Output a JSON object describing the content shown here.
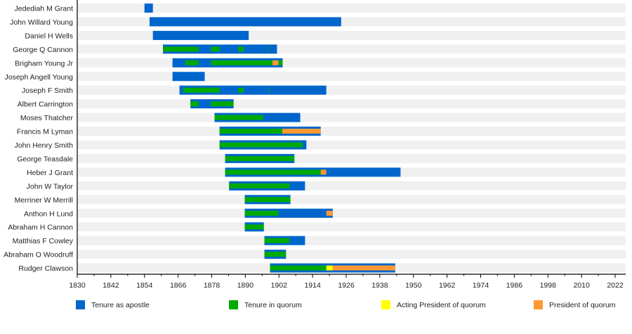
{
  "chart_data": {
    "type": "timeline",
    "title": "",
    "xlabel": "",
    "ylabel": "",
    "xlim": [
      1830,
      2022
    ],
    "x_ticks": [
      1830,
      1842,
      1854,
      1866,
      1878,
      1890,
      1902,
      1914,
      1926,
      1938,
      1950,
      1962,
      1974,
      1986,
      1998,
      2010,
      2022
    ],
    "grid": false,
    "legend_position": "bottom",
    "colors": {
      "apostle": "#0066cc",
      "quorum": "#00aa00",
      "acting_president": "#ffff00",
      "president": "#ff9933",
      "row_band": "#f0f0f0"
    },
    "legend": [
      {
        "key": "apostle",
        "label": "Tenure as apostle"
      },
      {
        "key": "quorum",
        "label": "Tenure in quorum"
      },
      {
        "key": "acting_president",
        "label": "Acting President of quorum"
      },
      {
        "key": "president",
        "label": "President of quorum"
      }
    ],
    "rows": [
      {
        "name": "Jedediah M Grant",
        "apostle": [
          1854,
          1857
        ],
        "quorum": [],
        "acting_president": [],
        "president": []
      },
      {
        "name": "John Willard Young",
        "apostle": [
          1855.8,
          1924.2
        ],
        "quorum": [],
        "acting_president": [],
        "president": []
      },
      {
        "name": "Daniel H Wells",
        "apostle": [
          1857,
          1891.2
        ],
        "quorum": [],
        "acting_president": [],
        "president": []
      },
      {
        "name": "George Q Cannon",
        "apostle": [
          1860.6,
          1901.3
        ],
        "quorum": [
          [
            1860.6,
            1873.3
          ],
          [
            1877.7,
            1880.8
          ],
          [
            1887.4,
            1889.4
          ],
          [
            1898.3,
            1898.5
          ]
        ],
        "acting_president": [],
        "president": []
      },
      {
        "name": "Brigham Young Jr",
        "apostle": [
          1864,
          1903.3
        ],
        "quorum": [
          [
            1868.6,
            1873.3
          ],
          [
            1877.7,
            1899.7
          ],
          [
            1901.8,
            1903.3
          ]
        ],
        "acting_president": [],
        "president": [
          [
            1899.7,
            1901.8
          ]
        ]
      },
      {
        "name": "Joseph Angell Young",
        "apostle": [
          1864,
          1875.5
        ],
        "quorum": [],
        "acting_president": [],
        "president": []
      },
      {
        "name": "Joseph F Smith",
        "apostle": [
          1866.5,
          1918.9
        ],
        "quorum": [
          [
            1867.8,
            1880.8
          ],
          [
            1887.4,
            1889.4
          ],
          [
            1898.3,
            1898.5
          ]
        ],
        "acting_president": [],
        "president": []
      },
      {
        "name": "Albert Carrington",
        "apostle": [
          1870.4,
          1885.8
        ],
        "quorum": [
          [
            1870.4,
            1873.3
          ],
          [
            1877.7,
            1885.8
          ]
        ],
        "acting_president": [],
        "president": []
      },
      {
        "name": "Moses Thatcher",
        "apostle": [
          1879,
          1909.6
        ],
        "quorum": [
          [
            1879,
            1896.3
          ]
        ],
        "acting_president": [],
        "president": []
      },
      {
        "name": "Francis M Lyman",
        "apostle": [
          1880.8,
          1916.9
        ],
        "quorum": [
          [
            1880.8,
            1903.2
          ]
        ],
        "acting_president": [],
        "president": [
          [
            1903.2,
            1916.9
          ]
        ]
      },
      {
        "name": "John Henry Smith",
        "apostle": [
          1880.8,
          1911.8
        ],
        "quorum": [
          [
            1880.8,
            1910.4
          ]
        ],
        "acting_president": [],
        "president": []
      },
      {
        "name": "George Teasdale",
        "apostle": [
          1882.8,
          1907.5
        ],
        "quorum": [
          [
            1882.8,
            1907.5
          ]
        ],
        "acting_president": [],
        "president": []
      },
      {
        "name": "Heber J Grant",
        "apostle": [
          1882.8,
          1945.4
        ],
        "quorum": [
          [
            1882.8,
            1916.9
          ]
        ],
        "acting_president": [],
        "president": [
          [
            1916.9,
            1918.9
          ]
        ]
      },
      {
        "name": "John W Taylor",
        "apostle": [
          1884.2,
          1911.3
        ],
        "quorum": [
          [
            1884.2,
            1905.8
          ]
        ],
        "acting_president": [],
        "president": []
      },
      {
        "name": "Merriner W Merrill",
        "apostle": [
          1889.8,
          1906.1
        ],
        "quorum": [
          [
            1889.8,
            1906.1
          ]
        ],
        "acting_president": [],
        "president": []
      },
      {
        "name": "Anthon H Lund",
        "apostle": [
          1889.8,
          1921.2
        ],
        "quorum": [
          [
            1889.8,
            1901.8
          ]
        ],
        "acting_president": [],
        "president": [
          [
            1918.9,
            1921.2
          ]
        ]
      },
      {
        "name": "Abraham H Cannon",
        "apostle": [
          1889.8,
          1896.6
        ],
        "quorum": [
          [
            1889.8,
            1896.6
          ]
        ],
        "acting_president": [],
        "president": []
      },
      {
        "name": "Matthias F Cowley",
        "apostle": [
          1896.8,
          1911.3
        ],
        "quorum": [
          [
            1896.8,
            1905.8
          ]
        ],
        "acting_president": [],
        "president": []
      },
      {
        "name": "Abraham O Woodruff",
        "apostle": [
          1896.8,
          1904.5
        ],
        "quorum": [
          [
            1896.8,
            1904.5
          ]
        ],
        "acting_president": [],
        "president": []
      },
      {
        "name": "Rudger Clawson",
        "apostle": [
          1898.8,
          1943.5
        ],
        "quorum": [
          [
            1898.8,
            1918.9
          ]
        ],
        "acting_president": [
          [
            1918.9,
            1921.2
          ]
        ],
        "president": [
          [
            1921.2,
            1943.5
          ]
        ]
      }
    ]
  }
}
